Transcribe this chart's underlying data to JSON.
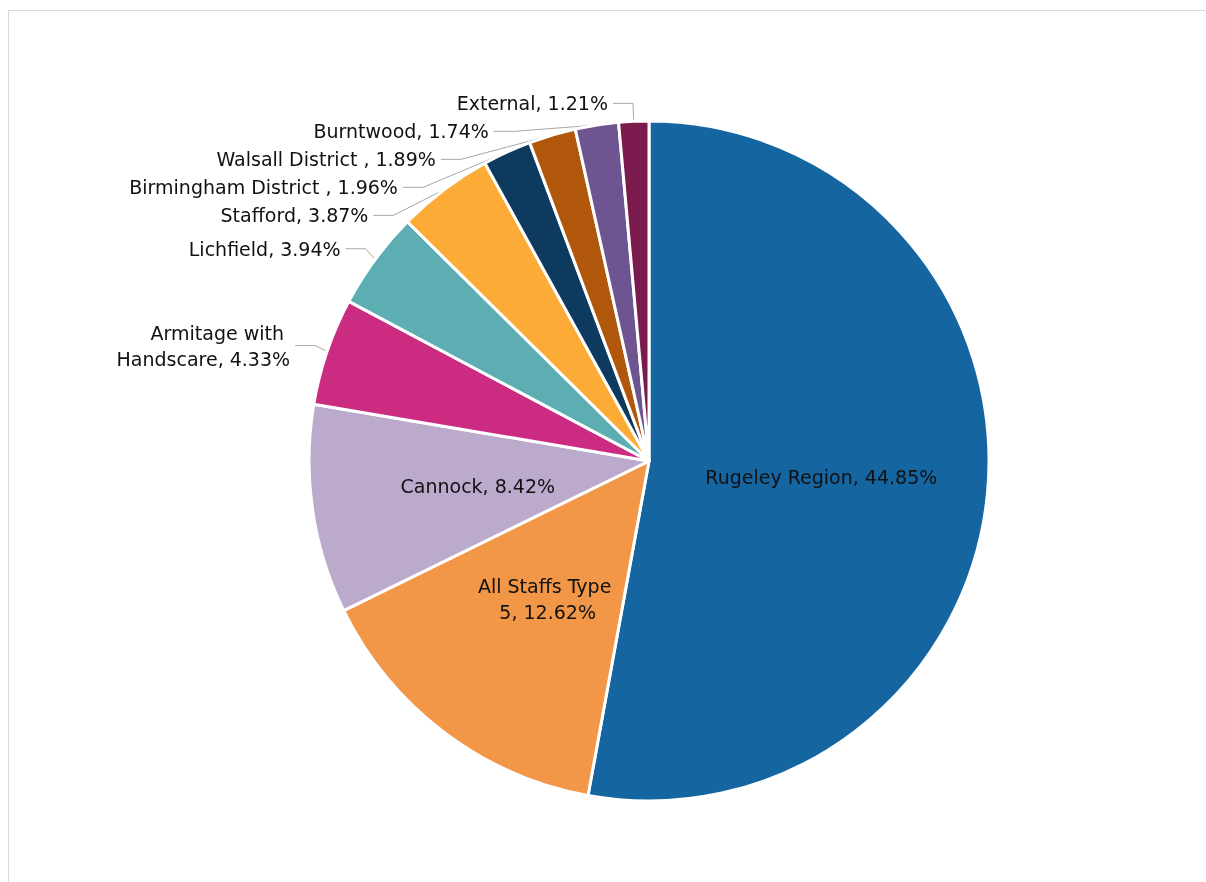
{
  "chart_data": {
    "type": "pie",
    "categories": [
      "Rugeley Region",
      "All Staffs Type 5",
      "Cannock",
      "Armitage with Handscare",
      "Lichfield",
      "Stafford",
      "Birmingham District ",
      "Walsall District ",
      "Burntwood",
      "External"
    ],
    "values": [
      44.85,
      12.62,
      8.42,
      4.33,
      3.94,
      3.87,
      1.96,
      1.89,
      1.74,
      1.21
    ],
    "value_labels": [
      "44.85%",
      "12.62%",
      "8.42%",
      "4.33%",
      "3.94%",
      "3.87%",
      "1.96%",
      "1.89%",
      "1.74%",
      "1.21%"
    ],
    "colors": [
      "#1565a1",
      "#f29748",
      "#bcaacd",
      "#cb2b80",
      "#5daeb3",
      "#fdab37",
      "#0e3a5f",
      "#b0570b",
      "#6e5591",
      "#7a1a4d"
    ],
    "legend": false
  }
}
